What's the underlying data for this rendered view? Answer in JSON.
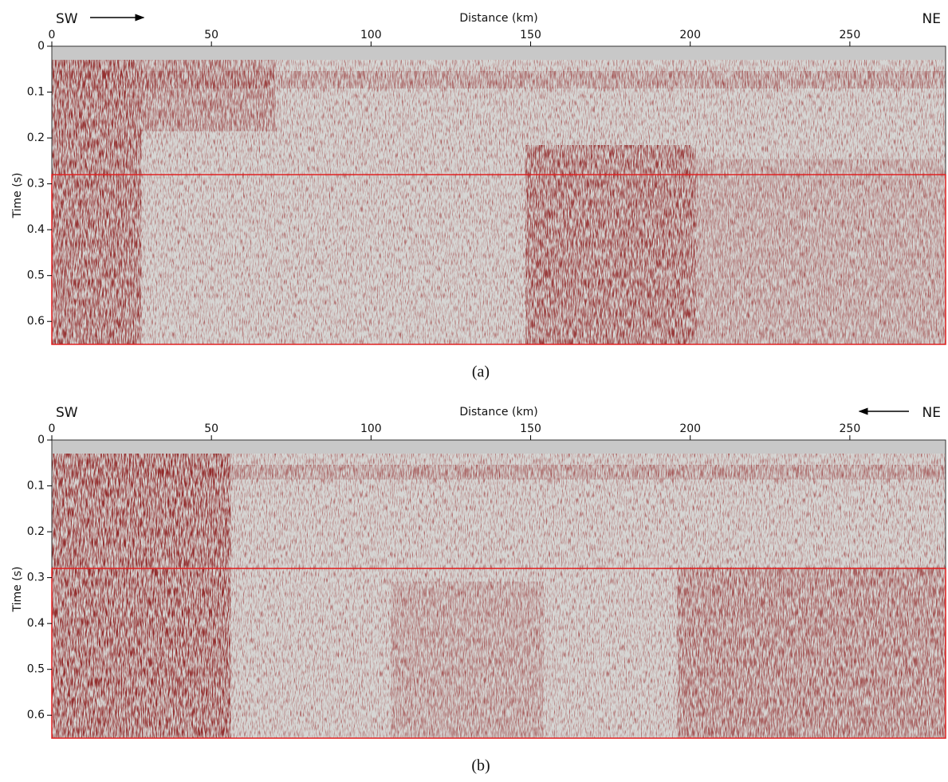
{
  "chart_data": [
    {
      "type": "image",
      "caption": "(a)",
      "xlabel": "Distance (km)",
      "ylabel": "Time (s)",
      "annotations": [
        "SW",
        "NE"
      ],
      "arrow": "right",
      "xlim": [
        0,
        280
      ],
      "ylim": [
        0,
        0.65
      ],
      "xticks": [
        0,
        50,
        100,
        150,
        200,
        250
      ],
      "yticks": [
        0,
        0.1,
        0.2,
        0.3,
        0.4,
        0.5,
        0.6
      ],
      "highlight": {
        "ylim": [
          0.28,
          0.65
        ],
        "color": "#e02020"
      }
    },
    {
      "type": "image",
      "caption": "(b)",
      "xlabel": "Distance (km)",
      "ylabel": "Time (s)",
      "annotations": [
        "SW",
        "NE"
      ],
      "arrow": "left",
      "xlim": [
        0,
        280
      ],
      "ylim": [
        0,
        0.65
      ],
      "xticks": [
        0,
        50,
        100,
        150,
        200,
        250
      ],
      "yticks": [
        0,
        0.1,
        0.2,
        0.3,
        0.4,
        0.5,
        0.6
      ],
      "highlight": {
        "ylim": [
          0.28,
          0.65
        ],
        "color": "#e02020"
      }
    }
  ]
}
